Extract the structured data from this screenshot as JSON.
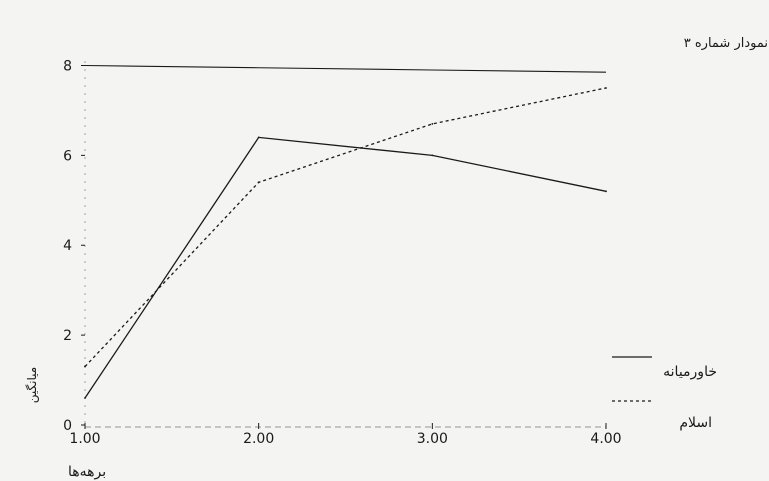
{
  "chart_data": {
    "type": "line",
    "title": "نمودار شماره ۳",
    "xlabel": "برهه‌ها",
    "ylabel": "میانگین",
    "x": [
      1.0,
      2.0,
      3.0,
      4.0
    ],
    "x_tick_labels": [
      "1.00",
      "2.00",
      "3.00",
      "4.00"
    ],
    "y_tick_labels": [
      "0",
      "2",
      "4",
      "6",
      "8"
    ],
    "y_ticks": [
      0,
      2,
      4,
      6,
      8
    ],
    "xlim": [
      1.0,
      4.0
    ],
    "ylim": [
      0,
      8.1
    ],
    "series": [
      {
        "name": "خاورمیانه",
        "style": "solid",
        "color": "#1a1a1a",
        "values": [
          0.6,
          6.4,
          6.0,
          5.2
        ]
      },
      {
        "name": "اسلام",
        "style": "dashed",
        "color": "#1a1a1a",
        "values": [
          1.3,
          5.4,
          6.7,
          7.5
        ]
      }
    ],
    "reference_lines": [
      {
        "style": "solid",
        "color": "#1a1a1a",
        "values": [
          8.0,
          7.95,
          7.9,
          7.85
        ]
      }
    ],
    "legend_position": "bottom-right",
    "grid": false
  }
}
